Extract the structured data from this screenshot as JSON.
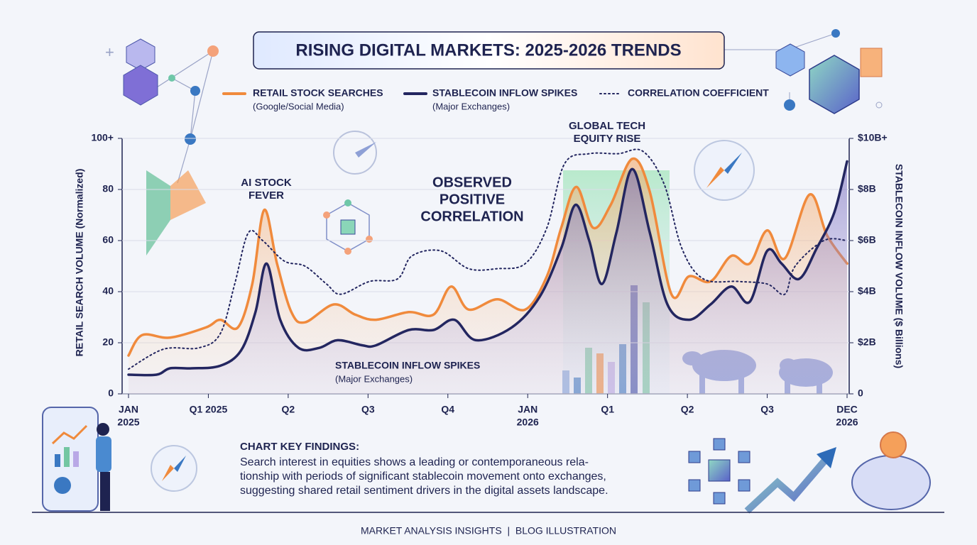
{
  "chart_data": {
    "type": "line",
    "title": "RISING DIGITAL MARKETS: 2025-2026 TRENDS",
    "y_label": "RETAIL SEARCH VOLUME (Normalized)",
    "y2_label": "STABLECOIN INFLOW VOLUME ($ Billions)",
    "xlim": [
      0,
      9
    ],
    "xticks": [
      {
        "value": 0,
        "label": [
          "JAN",
          "2025"
        ]
      },
      {
        "value": 1,
        "label": "Q1 2025"
      },
      {
        "value": 2,
        "label": "Q2"
      },
      {
        "value": 3,
        "label": "Q3"
      },
      {
        "value": 4,
        "label": "Q4"
      },
      {
        "value": 5,
        "label": [
          "JAN",
          "2026"
        ]
      },
      {
        "value": 6,
        "label": "Q1"
      },
      {
        "value": 7,
        "label": "Q2"
      },
      {
        "value": 8,
        "label": "Q3"
      },
      {
        "value": 9,
        "label": [
          "DEC",
          "2026"
        ]
      }
    ],
    "ylim": [
      0,
      100
    ],
    "yticks": [
      0,
      20,
      40,
      60,
      80,
      {
        "value": 100,
        "label": "100+"
      }
    ],
    "y2lim": [
      0,
      10
    ],
    "y2ticks": [
      0,
      {
        "value": 2,
        "label": "$2B"
      },
      {
        "value": 4,
        "label": "$4B"
      },
      {
        "value": 6,
        "label": "$6B"
      },
      {
        "value": 8,
        "label": "$8B"
      },
      {
        "value": 10,
        "label": "$10B+"
      }
    ],
    "grid": true,
    "series": [
      {
        "name": "RETAIL STOCK SEARCHES",
        "sublabel": "(Google/Social Media)",
        "color": "#f08a3c",
        "style": "solid",
        "x": [
          0,
          0.17,
          0.52,
          0.97,
          1.15,
          1.37,
          1.55,
          1.7,
          1.86,
          2.04,
          2.21,
          2.57,
          2.84,
          3.1,
          3.51,
          3.82,
          4.04,
          4.26,
          4.62,
          4.97,
          5.24,
          5.42,
          5.61,
          5.82,
          6.04,
          6.31,
          6.53,
          6.8,
          7.02,
          7.29,
          7.55,
          7.78,
          8.0,
          8.22,
          8.53,
          8.75,
          9.0
        ],
        "values": [
          15,
          23,
          22,
          26,
          29,
          26,
          43,
          72,
          51,
          32,
          28,
          35,
          31,
          29,
          32,
          31,
          42,
          33,
          37,
          33,
          46,
          65,
          81,
          65,
          74,
          92,
          79,
          39,
          46,
          44,
          54,
          51,
          64,
          53,
          78,
          62,
          51
        ]
      },
      {
        "name": "STABLECOIN INFLOW SPIKES",
        "sublabel": "(Major Exchanges)",
        "color": "#232660",
        "style": "solid",
        "axis": "y2",
        "x": [
          0,
          0.35,
          0.52,
          0.79,
          1.15,
          1.41,
          1.59,
          1.73,
          1.9,
          2.13,
          2.39,
          2.62,
          2.93,
          3.1,
          3.51,
          3.82,
          4.08,
          4.35,
          4.8,
          5.15,
          5.42,
          5.6,
          5.77,
          5.93,
          6.11,
          6.31,
          6.53,
          6.75,
          7.02,
          7.29,
          7.55,
          7.78,
          8.0,
          8.18,
          8.4,
          8.62,
          8.84,
          9.0
        ],
        "values": [
          0.75,
          0.75,
          1.0,
          1.0,
          1.1,
          1.7,
          3.2,
          5.1,
          2.9,
          1.8,
          1.8,
          2.1,
          1.9,
          1.9,
          2.5,
          2.5,
          2.9,
          2.1,
          2.6,
          3.8,
          5.7,
          7.4,
          6.0,
          4.3,
          6.3,
          8.8,
          6.3,
          3.5,
          2.9,
          3.5,
          4.2,
          3.6,
          5.6,
          5.1,
          4.5,
          5.7,
          7.1,
          9.1
        ]
      },
      {
        "name": "CORRELATION COEFFICIENT",
        "color": "#232660",
        "style": "dotted",
        "x": [
          0,
          0.44,
          0.88,
          1.15,
          1.33,
          1.5,
          1.68,
          1.95,
          2.21,
          2.48,
          2.66,
          3.02,
          3.37,
          3.55,
          3.91,
          4.26,
          4.62,
          4.97,
          5.24,
          5.46,
          5.77,
          6.13,
          6.44,
          6.71,
          6.93,
          7.2,
          7.64,
          8.0,
          8.22,
          8.35,
          8.71,
          9.0
        ],
        "values": [
          9.7,
          17.5,
          18,
          23.6,
          43,
          63,
          60,
          52,
          50,
          43,
          39,
          44,
          45,
          54,
          56,
          49,
          49,
          51,
          65,
          90,
          94,
          94,
          95,
          82,
          57,
          45,
          44,
          43,
          39,
          50,
          60,
          60
        ]
      }
    ],
    "annotations": [
      {
        "text": [
          "AI STOCK",
          "FEVER"
        ]
      },
      {
        "text": [
          "GLOBAL TECH",
          "EQUITY RISE"
        ]
      },
      {
        "text": [
          "OBSERVED",
          "POSITIVE",
          "CORRELATION"
        ]
      },
      {
        "text": [
          "STABLECOIN INFLOW SPIKES",
          "(Major Exchanges)"
        ]
      }
    ],
    "findings": {
      "heading": "CHART KEY FINDINGS:",
      "lines": [
        "Search interest in equities shows a leading or contemporaneous rela-",
        "tionship with periods of significant stablecoin movement onto exchanges,",
        "suggesting shared retail sentiment drivers in the digital assets landscape."
      ]
    },
    "footer": "MARKET ANALYSIS INSIGHTS  |  BLOG ILLUSTRATION"
  }
}
